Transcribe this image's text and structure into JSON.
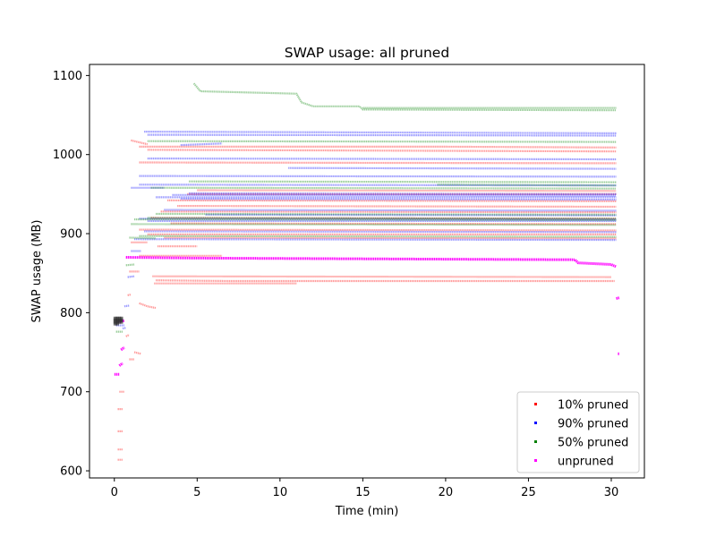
{
  "chart_data": {
    "type": "scatter",
    "title": "SWAP usage: all pruned",
    "xlabel": "Time (min)",
    "ylabel": "SWAP usage (MB)",
    "xlim": [
      -1.5,
      32.0
    ],
    "ylim": [
      591,
      1114
    ],
    "x_ticks": [
      0,
      5,
      10,
      15,
      20,
      25,
      30
    ],
    "y_ticks": [
      600,
      700,
      800,
      900,
      1000,
      1100
    ],
    "grid": false,
    "legend_position": "lower right",
    "series": [
      {
        "name": "10% pruned",
        "color": "#ff0000",
        "traces": [
          {
            "segments": [
              [
                0.2,
                614
              ],
              [
                0.5,
                614
              ]
            ]
          },
          {
            "segments": [
              [
                0.2,
                627
              ],
              [
                0.5,
                627
              ]
            ]
          },
          {
            "segments": [
              [
                0.2,
                650
              ],
              [
                0.5,
                650
              ]
            ]
          },
          {
            "segments": [
              [
                0.2,
                678
              ],
              [
                0.5,
                678
              ]
            ]
          },
          {
            "segments": [
              [
                0.3,
                700
              ],
              [
                0.6,
                700
              ]
            ]
          },
          {
            "segments": [
              [
                0.9,
                741
              ],
              [
                1.2,
                741
              ]
            ]
          },
          {
            "segments": [
              [
                1.2,
                750
              ],
              [
                1.6,
                748
              ]
            ]
          },
          {
            "segments": [
              [
                0.7,
                770
              ],
              [
                0.9,
                772
              ]
            ]
          },
          {
            "segments": [
              [
                1.5,
                812
              ],
              [
                2.0,
                808
              ],
              [
                2.5,
                806
              ]
            ]
          },
          {
            "segments": [
              [
                0.8,
                822
              ],
              [
                1.0,
                823
              ]
            ]
          },
          {
            "segments": [
              [
                2.4,
                837
              ],
              [
                11.0,
                837
              ]
            ]
          },
          {
            "segments": [
              [
                2.5,
                841
              ],
              [
                7.0,
                840
              ],
              [
                30.2,
                840
              ]
            ]
          },
          {
            "segments": [
              [
                2.3,
                846
              ],
              [
                30.0,
                845
              ]
            ]
          },
          {
            "segments": [
              [
                0.9,
                852
              ],
              [
                1.5,
                852
              ]
            ]
          },
          {
            "segments": [
              [
                1.5,
                872
              ],
              [
                6.5,
                872
              ]
            ]
          },
          {
            "segments": [
              [
                2.6,
                884
              ],
              [
                5.0,
                884
              ]
            ]
          },
          {
            "segments": [
              [
                1.0,
                889
              ],
              [
                2.0,
                889
              ]
            ]
          },
          {
            "segments": [
              [
                3.0,
                895
              ],
              [
                30.3,
                894
              ]
            ]
          },
          {
            "segments": [
              [
                2.0,
                899
              ],
              [
                30.3,
                899
              ]
            ]
          },
          {
            "segments": [
              [
                1.5,
                905
              ],
              [
                30.3,
                904
              ]
            ]
          },
          {
            "segments": [
              [
                3.4,
                913
              ],
              [
                30.3,
                912
              ]
            ]
          },
          {
            "segments": [
              [
                2.2,
                920
              ],
              [
                30.3,
                919
              ]
            ]
          },
          {
            "segments": [
              [
                2.8,
                928
              ],
              [
                30.3,
                927
              ]
            ]
          },
          {
            "segments": [
              [
                3.8,
                935
              ],
              [
                30.3,
                934
              ]
            ]
          },
          {
            "segments": [
              [
                3.2,
                942
              ],
              [
                30.3,
                941
              ]
            ]
          },
          {
            "segments": [
              [
                4.4,
                950
              ],
              [
                30.3,
                950
              ]
            ]
          },
          {
            "segments": [
              [
                5.0,
                955
              ],
              [
                30.3,
                954
              ]
            ]
          },
          {
            "segments": [
              [
                1.5,
                990
              ],
              [
                30.3,
                989
              ]
            ]
          },
          {
            "segments": [
              [
                2.0,
                1006
              ],
              [
                30.3,
                1004
              ]
            ]
          },
          {
            "segments": [
              [
                1.5,
                1010
              ],
              [
                20.0,
                1010
              ],
              [
                30.3,
                1009
              ]
            ]
          },
          {
            "segments": [
              [
                1.0,
                1018
              ],
              [
                2.0,
                1013
              ]
            ]
          }
        ]
      },
      {
        "name": "90% pruned",
        "color": "#0000ff",
        "traces": [
          {
            "segments": [
              [
                0.1,
                784
              ],
              [
                0.6,
                784
              ]
            ]
          },
          {
            "segments": [
              [
                0.5,
                780
              ],
              [
                0.7,
                781
              ]
            ]
          },
          {
            "segments": [
              [
                0.8,
                845
              ],
              [
                1.2,
                846
              ]
            ]
          },
          {
            "segments": [
              [
                1.0,
                878
              ],
              [
                1.6,
                878
              ]
            ]
          },
          {
            "segments": [
              [
                1.2,
                893
              ],
              [
                30.3,
                892
              ]
            ]
          },
          {
            "segments": [
              [
                1.8,
                903
              ],
              [
                30.3,
                902
              ]
            ]
          },
          {
            "segments": [
              [
                2.0,
                916
              ],
              [
                30.3,
                916
              ]
            ]
          },
          {
            "segments": [
              [
                1.5,
                919
              ],
              [
                30.3,
                918
              ]
            ]
          },
          {
            "segments": [
              [
                5.5,
                924
              ],
              [
                30.3,
                923
              ]
            ]
          },
          {
            "segments": [
              [
                3.0,
                930
              ],
              [
                30.3,
                929
              ]
            ]
          },
          {
            "segments": [
              [
                4.0,
                944
              ],
              [
                30.3,
                943
              ]
            ]
          },
          {
            "segments": [
              [
                2.5,
                946
              ],
              [
                30.3,
                946
              ]
            ]
          },
          {
            "segments": [
              [
                3.5,
                949
              ],
              [
                30.3,
                948
              ]
            ]
          },
          {
            "segments": [
              [
                4.5,
                951
              ],
              [
                30.3,
                950
              ]
            ]
          },
          {
            "segments": [
              [
                1.0,
                958
              ],
              [
                3.0,
                958
              ]
            ]
          },
          {
            "segments": [
              [
                1.5,
                962
              ],
              [
                30.3,
                961
              ]
            ]
          },
          {
            "segments": [
              [
                1.5,
                973
              ],
              [
                30.3,
                972
              ]
            ]
          },
          {
            "segments": [
              [
                10.5,
                983
              ],
              [
                30.3,
                982
              ]
            ]
          },
          {
            "segments": [
              [
                2.0,
                995
              ],
              [
                30.3,
                994
              ]
            ]
          },
          {
            "segments": [
              [
                4.0,
                1012
              ],
              [
                6.5,
                1014
              ]
            ]
          },
          {
            "segments": [
              [
                2.0,
                1025
              ],
              [
                30.3,
                1024
              ]
            ]
          },
          {
            "segments": [
              [
                1.8,
                1029
              ],
              [
                30.3,
                1027
              ]
            ]
          },
          {
            "segments": [
              [
                0.6,
                808
              ],
              [
                0.9,
                809
              ]
            ]
          }
        ]
      },
      {
        "name": "50% pruned",
        "color": "#008000",
        "traces": [
          {
            "segments": [
              [
                0.1,
                776
              ],
              [
                0.5,
                776
              ]
            ]
          },
          {
            "segments": [
              [
                0.3,
                790
              ],
              [
                0.6,
                790
              ]
            ]
          },
          {
            "segments": [
              [
                0.7,
                860
              ],
              [
                1.2,
                861
              ]
            ]
          },
          {
            "segments": [
              [
                0.9,
                895
              ],
              [
                2.5,
                894
              ]
            ]
          },
          {
            "segments": [
              [
                1.5,
                897
              ],
              [
                30.3,
                896
              ]
            ]
          },
          {
            "segments": [
              [
                1.0,
                912
              ],
              [
                30.3,
                911
              ]
            ]
          },
          {
            "segments": [
              [
                1.2,
                918
              ],
              [
                30.3,
                917
              ]
            ]
          },
          {
            "segments": [
              [
                2.0,
                920
              ],
              [
                30.3,
                919
              ]
            ]
          },
          {
            "segments": [
              [
                2.5,
                925
              ],
              [
                30.3,
                924
              ]
            ]
          },
          {
            "segments": [
              [
                2.2,
                958
              ],
              [
                30.3,
                957
              ]
            ]
          },
          {
            "segments": [
              [
                19.5,
                962
              ],
              [
                30.3,
                961
              ]
            ]
          },
          {
            "segments": [
              [
                4.5,
                966
              ],
              [
                30.3,
                965
              ]
            ]
          },
          {
            "segments": [
              [
                2.0,
                1017
              ],
              [
                30.3,
                1016
              ]
            ]
          },
          {
            "segments": [
              [
                4.8,
                1090
              ],
              [
                5.2,
                1080
              ],
              [
                11.0,
                1077
              ],
              [
                11.3,
                1066
              ],
              [
                12.0,
                1061
              ],
              [
                14.8,
                1061
              ],
              [
                15.0,
                1057
              ],
              [
                30.3,
                1056
              ]
            ]
          },
          {
            "segments": [
              [
                15.0,
                1059
              ],
              [
                30.3,
                1059
              ]
            ]
          }
        ]
      },
      {
        "name": "unpruned",
        "color": "#ff00ff",
        "traces": [
          {
            "segments": [
              [
                0.0,
                722
              ],
              [
                0.3,
                722
              ]
            ]
          },
          {
            "segments": [
              [
                0.3,
                733
              ],
              [
                0.5,
                736
              ]
            ]
          },
          {
            "segments": [
              [
                0.4,
                753
              ],
              [
                0.6,
                756
              ]
            ]
          },
          {
            "segments": [
              [
                0.2,
                788
              ],
              [
                0.6,
                790
              ]
            ]
          },
          {
            "segments": [
              [
                0.7,
                870
              ],
              [
                5.0,
                869
              ],
              [
                27.8,
                867
              ],
              [
                28.0,
                863
              ],
              [
                30.0,
                861
              ],
              [
                30.3,
                858
              ]
            ]
          },
          {
            "segments": [
              [
                30.3,
                818
              ],
              [
                30.5,
                819
              ]
            ]
          },
          {
            "segments": [
              [
                30.4,
                748
              ],
              [
                30.5,
                748
              ]
            ]
          }
        ]
      }
    ]
  }
}
